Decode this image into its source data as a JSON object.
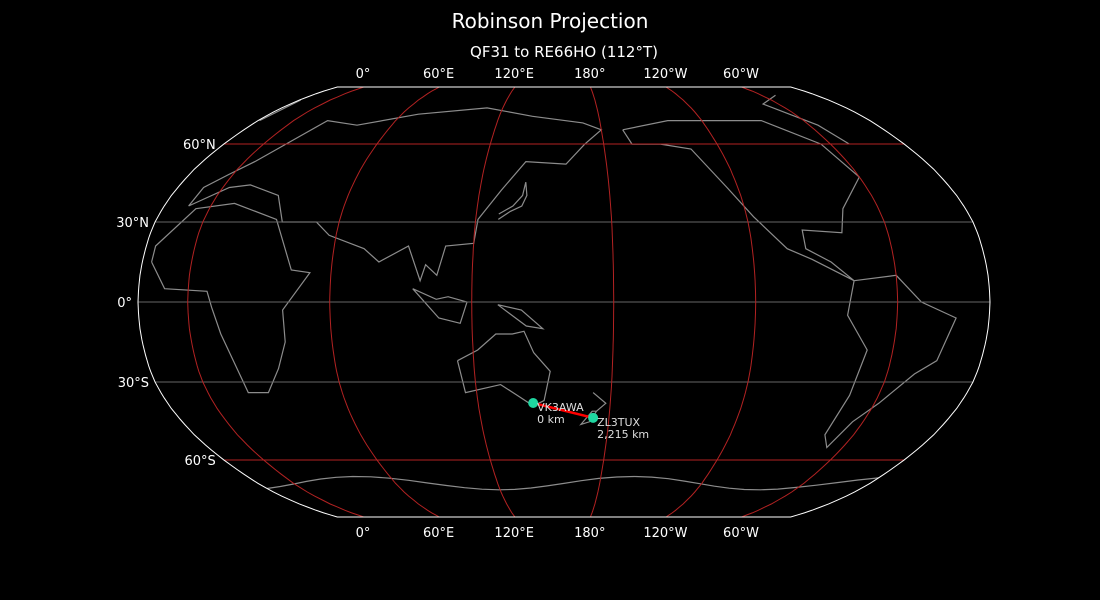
{
  "title": "Robinson Projection",
  "subtitle": "QF31 to RE66HO (112°T)",
  "map": {
    "projection": "Robinson",
    "central_longitude": 159,
    "colors": {
      "background": "#000000",
      "coastline": "#8c8c8c",
      "boundary": "#ffffff",
      "graticule_major": "#b22222",
      "graticule_minor": "#666666",
      "path": "#ff0000",
      "marker": "#1fd6a0"
    },
    "lon_labels": [
      "0°",
      "60°E",
      "120°E",
      "180°",
      "120°W",
      "60°W"
    ],
    "lat_labels": [
      {
        "lat": 60,
        "text": "60°N"
      },
      {
        "lat": 30,
        "text": "30°N"
      },
      {
        "lat": 0,
        "text": "0°"
      },
      {
        "lat": -30,
        "text": "30°S"
      },
      {
        "lat": -60,
        "text": "60°S"
      }
    ],
    "stations": [
      {
        "call": "VK3AWA",
        "distance": "0 km",
        "lon": 145.0,
        "lat": -37.9
      },
      {
        "call": "ZL3TUX",
        "distance": "2,215 km",
        "lon": 172.6,
        "lat": -43.5
      }
    ]
  }
}
